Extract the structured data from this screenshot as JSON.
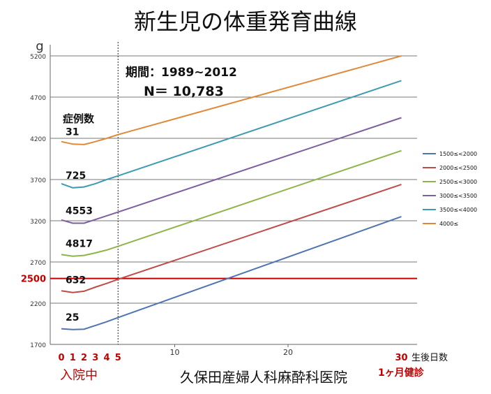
{
  "chart_data": {
    "type": "line",
    "title": "新生児の体重発育曲線",
    "ylabel": "g",
    "xlabel": "生後日数",
    "ylim": [
      1700,
      5200
    ],
    "xlim": [
      -1,
      32
    ],
    "yticks": [
      1700,
      2200,
      2700,
      3200,
      3700,
      4200,
      4700,
      5200
    ],
    "xticks_major": [
      10,
      20
    ],
    "xticks_red": [
      "0",
      "1",
      "2",
      "3",
      "4",
      "5",
      "30"
    ],
    "grid": "horizontal",
    "legend_position": "right",
    "series": [
      {
        "name": "1500≤<2000",
        "color": "#4F74B2",
        "points": [
          [
            0,
            1890
          ],
          [
            1,
            1880
          ],
          [
            2,
            1885
          ],
          [
            3,
            1930
          ],
          [
            4,
            1975
          ],
          [
            5,
            2025
          ],
          [
            30,
            3250
          ]
        ]
      },
      {
        "name": "2000≤<2500",
        "color": "#BE4B48",
        "points": [
          [
            0,
            2350
          ],
          [
            1,
            2330
          ],
          [
            2,
            2345
          ],
          [
            3,
            2395
          ],
          [
            4,
            2440
          ],
          [
            5,
            2490
          ],
          [
            30,
            3640
          ]
        ]
      },
      {
        "name": "2500≤<3000",
        "color": "#8EB44A",
        "points": [
          [
            0,
            2790
          ],
          [
            1,
            2770
          ],
          [
            2,
            2780
          ],
          [
            3,
            2810
          ],
          [
            4,
            2845
          ],
          [
            5,
            2890
          ],
          [
            30,
            4050
          ]
        ]
      },
      {
        "name": "3000≤<3500",
        "color": "#7D5FA0",
        "points": [
          [
            0,
            3210
          ],
          [
            1,
            3170
          ],
          [
            2,
            3170
          ],
          [
            3,
            3215
          ],
          [
            4,
            3260
          ],
          [
            5,
            3305
          ],
          [
            30,
            4450
          ]
        ]
      },
      {
        "name": "3500≤<4000",
        "color": "#3E9BB0",
        "points": [
          [
            0,
            3650
          ],
          [
            1,
            3600
          ],
          [
            2,
            3610
          ],
          [
            3,
            3650
          ],
          [
            4,
            3700
          ],
          [
            5,
            3745
          ],
          [
            30,
            4900
          ]
        ]
      },
      {
        "name": "4000≤",
        "color": "#E08A38",
        "points": [
          [
            0,
            4160
          ],
          [
            1,
            4130
          ],
          [
            2,
            4125
          ],
          [
            3,
            4160
          ],
          [
            4,
            4200
          ],
          [
            5,
            4245
          ],
          [
            30,
            5200
          ]
        ]
      }
    ],
    "case_counts": [
      {
        "label": "31",
        "near": 4130
      },
      {
        "label": "725",
        "near": 3600
      },
      {
        "label": "4553",
        "near": 3170
      },
      {
        "label": "4817",
        "near": 2770
      },
      {
        "label": "632",
        "near": 2330
      },
      {
        "label": "25",
        "near": 1880
      }
    ],
    "case_count_header": "症例数",
    "period_text": "期間：1989~2012",
    "n_text": "N＝ 10,783",
    "reference_line": {
      "value": 2500,
      "label": "2500",
      "color": "#C00000"
    },
    "dotted_marker_x": 5,
    "admission_label": "入院中",
    "checkup_label": "1ヶ月健診",
    "clinic_name": "久保田産婦人科麻酔科医院"
  }
}
